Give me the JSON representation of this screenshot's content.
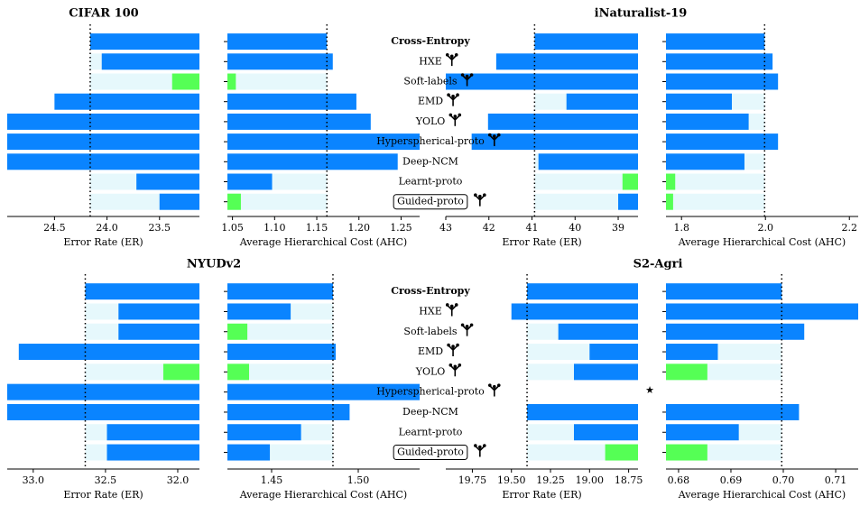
{
  "methods": [
    "Cross-Entropy",
    "HXE",
    "Soft-labels",
    "EMD",
    "YOLO",
    "Hyperspherical-proto",
    "Deep-NCM",
    "Learnt-proto",
    "Guided-proto"
  ],
  "chart_data": [
    {
      "type": "bar",
      "title": "CIFAR 100",
      "bar_color": "#0a84ff",
      "best_color": "#55ff55",
      "better_color": "#e6f8fc",
      "panels": [
        {
          "xlabel": "Error Rate (ER)",
          "xlim": [
            24.95,
            23.12
          ],
          "xticks": [
            24.5,
            {
              "value": 24,
              "label": "24.0"
            },
            23.5
          ],
          "values": [
            24.16,
            24.05,
            23.38,
            24.5,
            25.0,
            25.3,
            25.0,
            23.72,
            23.5
          ],
          "best": [
            2
          ]
        },
        {
          "xlabel": "Average Hierarchical Cost (AHC)",
          "xlim": [
            1.044,
            1.272
          ],
          "xticks": [
            1.05,
            {
              "value": 1.1,
              "label": "1.10"
            },
            1.15,
            {
              "value": 1.2,
              "label": "1.20"
            },
            1.25
          ],
          "values": [
            1.162,
            1.169,
            1.054,
            1.197,
            1.214,
            1.3,
            1.246,
            1.097,
            1.06
          ],
          "best": [
            2,
            8
          ]
        }
      ]
    },
    {
      "type": "bar",
      "title": "iNaturalist-19",
      "bar_color": "#0a84ff",
      "best_color": "#55ff55",
      "better_color": "#e6f8fc",
      "panels": [
        {
          "xlabel": "Error Rate (ER)",
          "xlim": [
            43,
            38.54
          ],
          "xticks": [
            43,
            42,
            41,
            40,
            39
          ],
          "values": [
            40.94,
            41.83,
            43.2,
            40.2,
            42.02,
            42.4,
            40.85,
            38.9,
            39.0
          ],
          "best": [
            7
          ]
        },
        {
          "xlabel": "Average Hierarchical Cost (AHC)",
          "xlim": [
            1.763,
            2.221
          ],
          "xticks": [
            1.8,
            {
              "value": 2,
              "label": "2.0"
            },
            2.2
          ],
          "values": [
            1.998,
            2.017,
            2.03,
            1.92,
            1.96,
            2.03,
            1.95,
            1.785,
            1.78
          ],
          "best": [
            7,
            8
          ]
        }
      ]
    },
    {
      "type": "bar",
      "title": "NYUDv2",
      "bar_color": "#0a84ff",
      "best_color": "#55ff55",
      "better_color": "#e6f8fc",
      "panels": [
        {
          "xlabel": "Error Rate (ER)",
          "xlim": [
            33.18,
            31.85
          ],
          "xticks": [
            {
              "value": 33,
              "label": "33.0"
            },
            32.5,
            {
              "value": 32,
              "label": "32.0"
            }
          ],
          "values": [
            32.64,
            32.41,
            32.41,
            33.1,
            32.1,
            33.3,
            33.3,
            32.49,
            32.49
          ],
          "best": [
            4
          ]
        },
        {
          "xlabel": "Average Hierarchical Cost (AHC)",
          "xlim": [
            1.4245,
            1.5354
          ],
          "xticks": [
            1.45,
            {
              "value": 1.5,
              "label": "1.50"
            }
          ],
          "values": [
            1.4854,
            1.461,
            1.436,
            1.487,
            1.437,
            1.54,
            1.495,
            1.467,
            1.449
          ],
          "best": [
            2,
            4
          ]
        }
      ]
    },
    {
      "type": "bar",
      "title": "S2-Agri",
      "bar_color": "#0a84ff",
      "best_color": "#55ff55",
      "better_color": "#e6f8fc",
      "panels": [
        {
          "xlabel": "Error Rate (ER)",
          "xlim": [
            19.92,
            18.69
          ],
          "xticks": [
            19.75,
            {
              "value": 19.5,
              "label": "19.50"
            },
            19.25,
            {
              "value": 19,
              "label": "19.00"
            },
            18.75
          ],
          "values": [
            19.4,
            19.5,
            19.2,
            19.0,
            19.1,
            null,
            19.4,
            19.1,
            18.9
          ],
          "best": [
            8
          ]
        },
        {
          "xlabel": "Average Hierarchical Cost (AHC)",
          "xlim": [
            0.6776,
            0.7143
          ],
          "xticks": [
            0.68,
            0.69,
            {
              "value": 0.7,
              "label": "0.70"
            },
            0.71
          ],
          "values": [
            0.6997,
            0.716,
            0.704,
            0.6875,
            0.6855,
            null,
            0.703,
            0.6915,
            0.6855
          ],
          "best": [
            4,
            8
          ]
        }
      ]
    }
  ]
}
